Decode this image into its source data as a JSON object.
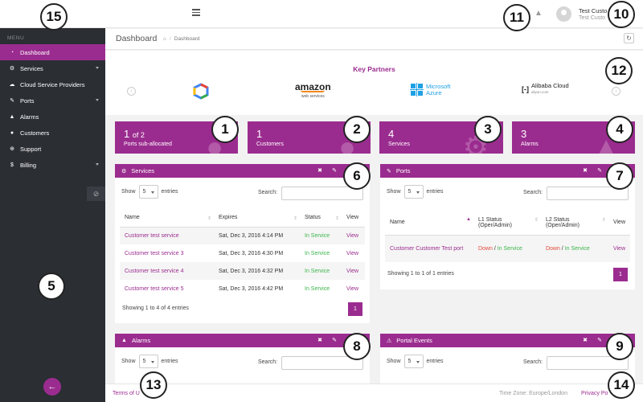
{
  "sidebar": {
    "menu_caption": "MENU",
    "items": [
      {
        "label": "Dashboard",
        "icon": "dashboard-icon",
        "glyph": "◔"
      },
      {
        "label": "Services",
        "icon": "cogs-icon",
        "glyph": "⚙"
      },
      {
        "label": "Cloud Service Providers",
        "icon": "cloud-icon",
        "glyph": "☁"
      },
      {
        "label": "Ports",
        "icon": "plug-icon",
        "glyph": "✎"
      },
      {
        "label": "Alarms",
        "icon": "bell-icon",
        "glyph": "🔔"
      },
      {
        "label": "Customers",
        "icon": "user-icon",
        "glyph": "👤"
      },
      {
        "label": "Support",
        "icon": "lifebuoy-icon",
        "glyph": "⊕"
      },
      {
        "label": "Billing",
        "icon": "dollar-icon",
        "glyph": "$"
      }
    ]
  },
  "topbar": {
    "user_name": "Test Custo",
    "user_sub": "Test Custo"
  },
  "breadcrumb": {
    "title": "Dashboard",
    "home_glyph": "⌂",
    "current": "Dashboard"
  },
  "partners": {
    "title": "Key Partners",
    "logos": {
      "amazon": "amazon",
      "amazon_sub": "web services",
      "azure_1": "Microsoft",
      "azure_2": "Azure",
      "alibaba": "Alibaba Cloud",
      "alibaba_sub": "aliyun.com"
    }
  },
  "cards": [
    {
      "num": "1",
      "of": "of 2",
      "label": "Ports sub-allocated"
    },
    {
      "num": "1",
      "of": "",
      "label": "Customers"
    },
    {
      "num": "4",
      "of": "",
      "label": "Services"
    },
    {
      "num": "3",
      "of": "",
      "label": "Alarms"
    }
  ],
  "services_panel": {
    "title": "Services",
    "show": "Show",
    "entries": "entries",
    "page_size": "5",
    "search": "Search:",
    "columns": [
      "Name",
      "Expires",
      "Status",
      "View"
    ],
    "rows": [
      [
        "Customer test service",
        "Sat, Dec 3, 2016 4:14 PM",
        "In Service",
        "View"
      ],
      [
        "Customer test service 3",
        "Sat, Dec 3, 2016 4:30 PM",
        "In Service",
        "View"
      ],
      [
        "Customer test service 4",
        "Sat, Dec 3, 2016 4:32 PM",
        "In Service",
        "View"
      ],
      [
        "Customer test service 5",
        "Sat, Dec 3, 2016 4:42 PM",
        "In Service",
        "View"
      ]
    ],
    "info": "Showing 1 to 4 of 4 entries",
    "page": "1"
  },
  "ports_panel": {
    "title": "Ports",
    "show": "Show",
    "entries": "entries",
    "page_size": "5",
    "search": "Search:",
    "columns": [
      "Name",
      "L1 Status (Oper/Admin)",
      "L2 Status (Oper/Admin)",
      "View"
    ],
    "row": {
      "name": "Customer Customer Test port",
      "l1_oper": "Down",
      "l1_admin": "In Service",
      "l2_oper": "Down",
      "l2_admin": "In Service",
      "slash": " / ",
      "view": "View"
    },
    "info": "Showing 1 to 1 of 1 entries",
    "page": "1"
  },
  "alarms_panel": {
    "title": "Alarms",
    "show": "Show",
    "entries": "entries",
    "page_size": "5",
    "search": "Search:"
  },
  "events_panel": {
    "title": "Portal Events",
    "show": "Show",
    "entries": "entries",
    "page_size": "5",
    "search": "Search:"
  },
  "footer": {
    "terms": "Terms of U",
    "timezone": "Time Zone: Europe/London",
    "privacy": "Privacy Po"
  },
  "markers": [
    "1",
    "2",
    "3",
    "4",
    "5",
    "6",
    "7",
    "8",
    "9",
    "10",
    "11",
    "12",
    "13",
    "14",
    "15"
  ],
  "colors": {
    "accent": "#9b2c8f",
    "sidebar": "#2b2e33",
    "ok": "#3bb54a",
    "down": "#e24b3b"
  }
}
